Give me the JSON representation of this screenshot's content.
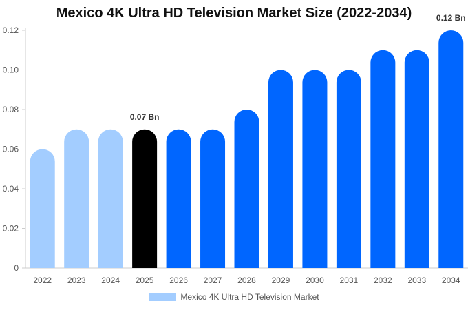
{
  "chart_data": {
    "type": "bar",
    "title": "Mexico 4K Ultra HD Television Market Size (2022-2034)",
    "xlabel": "",
    "ylabel": "",
    "categories": [
      "2022",
      "2023",
      "2024",
      "2025",
      "2026",
      "2027",
      "2028",
      "2029",
      "2030",
      "2031",
      "2032",
      "2033",
      "2034"
    ],
    "series": [
      {
        "name": "Mexico 4K Ultra HD Television Market",
        "values": [
          0.06,
          0.07,
          0.07,
          0.07,
          0.07,
          0.07,
          0.08,
          0.1,
          0.1,
          0.1,
          0.11,
          0.11,
          0.12
        ]
      }
    ],
    "ylim": [
      0,
      0.12
    ],
    "yticks": [
      "0",
      "0.02",
      "0.04",
      "0.06",
      "0.08",
      "0.10",
      "0.12"
    ],
    "data_labels": [
      {
        "category": "2025",
        "text": "0.07 Bn"
      },
      {
        "category": "2034",
        "text": "0.12 Bn"
      }
    ],
    "grid": false,
    "legend_position": "bottom",
    "colors": {
      "historical": "#a3cdff",
      "current": "#000000",
      "forecast": "#0066ff",
      "legend_swatch": "#a3cdff"
    },
    "bar_color_groups": [
      "historical",
      "historical",
      "historical",
      "current",
      "forecast",
      "forecast",
      "forecast",
      "forecast",
      "forecast",
      "forecast",
      "forecast",
      "forecast",
      "forecast"
    ]
  }
}
